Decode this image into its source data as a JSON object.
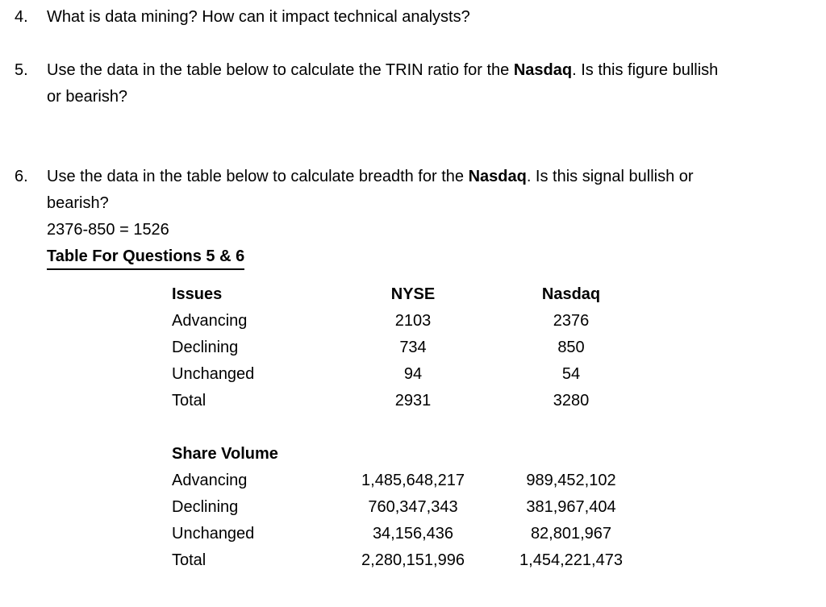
{
  "colors": {
    "background": "#ffffff",
    "text": "#000000"
  },
  "document": {
    "questions": [
      {
        "number": "4.",
        "lines": [
          [
            {
              "text": "What is data mining? How can it impact technical analysts?",
              "bold": false
            }
          ]
        ]
      },
      {
        "number": "5.",
        "lines": [
          [
            {
              "text": "Use the data in the table below to calculate the TRIN ratio for the ",
              "bold": false
            },
            {
              "text": "Nasdaq",
              "bold": true
            },
            {
              "text": ". Is this figure bullish",
              "bold": false
            }
          ],
          [
            {
              "text": "or bearish?",
              "bold": false
            }
          ]
        ]
      },
      {
        "number": "6.",
        "lines": [
          [
            {
              "text": "Use the data in the table below to calculate breadth for the ",
              "bold": false
            },
            {
              "text": "Nasdaq",
              "bold": true
            },
            {
              "text": ". Is this signal bullish or",
              "bold": false
            }
          ],
          [
            {
              "text": "bearish?",
              "bold": false
            }
          ],
          [
            {
              "text": "2376-850 = 1526",
              "bold": false
            }
          ],
          [
            {
              "text": "Table For Questions 5 & 6",
              "bold": true,
              "underline": true
            }
          ]
        ]
      }
    ],
    "table": {
      "title": "Table For Questions 5 & 6",
      "sections": [
        {
          "header": {
            "label": "Issues",
            "col1": "NYSE",
            "col2": "Nasdaq"
          },
          "rows": [
            {
              "label": "Advancing",
              "col1": "2103",
              "col2": "2376"
            },
            {
              "label": "Declining",
              "col1": "734",
              "col2": "850"
            },
            {
              "label": "Unchanged",
              "col1": "94",
              "col2": "54"
            },
            {
              "label": "Total",
              "col1": "2931",
              "col2": "3280"
            }
          ]
        },
        {
          "header": {
            "label": "Share Volume",
            "col1": "",
            "col2": ""
          },
          "rows": [
            {
              "label": "Advancing",
              "col1": "1,485,648,217",
              "col2": "989,452,102"
            },
            {
              "label": "Declining",
              "col1": "760,347,343",
              "col2": "381,967,404"
            },
            {
              "label": "Unchanged",
              "col1": "34,156,436",
              "col2": "82,801,967"
            },
            {
              "label": "Total",
              "col1": "2,280,151,996",
              "col2": "1,454,221,473"
            }
          ]
        }
      ]
    }
  }
}
